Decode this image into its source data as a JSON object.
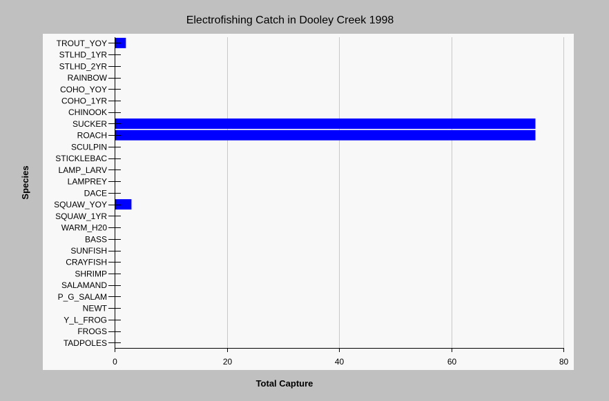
{
  "chart_data": {
    "type": "bar",
    "orientation": "horizontal",
    "title": "Electrofishing Catch in Dooley Creek 1998",
    "xlabel": "Total Capture",
    "ylabel": "Species",
    "xlim": [
      0,
      80
    ],
    "x_ticks": [
      0,
      20,
      40,
      60,
      80
    ],
    "grid": "vertical",
    "bar_color": "#0000ff",
    "categories": [
      "TROUT_YOY",
      "STLHD_1YR",
      "STLHD_2YR",
      "RAINBOW",
      "COHO_YOY",
      "COHO_1YR",
      "CHINOOK",
      "SUCKER",
      "ROACH",
      "SCULPIN",
      "STICKLEBAC",
      "LAMP_LARV",
      "LAMPREY",
      "DACE",
      "SQUAW_YOY",
      "SQUAW_1YR",
      "WARM_H20",
      "BASS",
      "SUNFISH",
      "CRAYFISH",
      "SHRIMP",
      "SALAMAND",
      "P_G_SALAM",
      "NEWT",
      "Y_L_FROG",
      "FROGS",
      "TADPOLES"
    ],
    "values": [
      2,
      0,
      0,
      0,
      0,
      0,
      0,
      75,
      75,
      0,
      0,
      0,
      0,
      0,
      3,
      0,
      0,
      0,
      0,
      0,
      0,
      0,
      0,
      0,
      0,
      0,
      0
    ]
  }
}
